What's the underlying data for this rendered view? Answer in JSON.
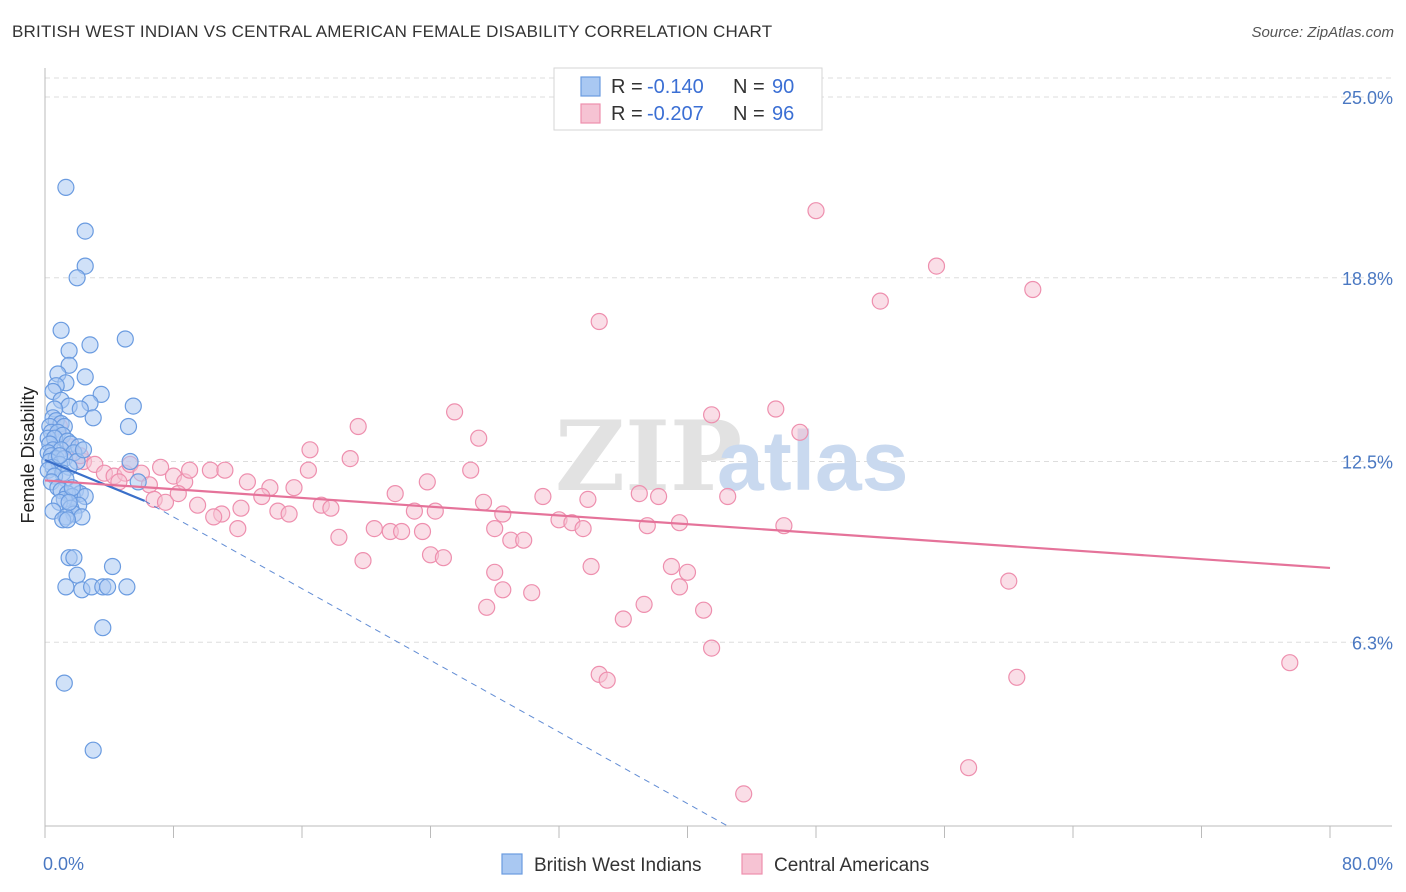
{
  "title": "BRITISH WEST INDIAN VS CENTRAL AMERICAN FEMALE DISABILITY CORRELATION CHART",
  "source": "Source: ZipAtlas.com",
  "watermark": {
    "zip": "ZIP",
    "atlas": "atlas"
  },
  "colors": {
    "blue_fill": "#a9c8f2",
    "blue_stroke": "#6a9be0",
    "blue_line": "#3a6fc9",
    "pink_fill": "#f6c3d3",
    "pink_stroke": "#ee8fae",
    "pink_line": "#e5739a",
    "tick_color": "#4a78c2",
    "grid": "#dddddd"
  },
  "legend": {
    "rows": [
      {
        "r_label": "R =",
        "r_value": "-0.140",
        "n_label": "N =",
        "n_value": "90"
      },
      {
        "r_label": "R =",
        "r_value": "-0.207",
        "n_label": "N =",
        "n_value": "96"
      }
    ]
  },
  "chart_data": {
    "type": "scatter",
    "ylabel": "Female Disability",
    "xlim": [
      0,
      80
    ],
    "ylim": [
      0,
      26
    ],
    "x_tick_labels": [
      "0.0%",
      "80.0%"
    ],
    "y_ticks": [
      6.3,
      12.5,
      18.8,
      25.0
    ],
    "y_tick_labels": [
      "6.3%",
      "12.5%",
      "18.8%",
      "25.0%"
    ],
    "grid": "horizontal dashed",
    "series": [
      {
        "name": "British West Indians",
        "points": [
          [
            1.3,
            21.9
          ],
          [
            2.5,
            20.4
          ],
          [
            2.5,
            19.2
          ],
          [
            2.0,
            18.8
          ],
          [
            1.0,
            17.0
          ],
          [
            5.0,
            16.7
          ],
          [
            2.8,
            16.5
          ],
          [
            1.5,
            16.3
          ],
          [
            1.5,
            15.8
          ],
          [
            0.8,
            15.5
          ],
          [
            2.5,
            15.4
          ],
          [
            1.3,
            15.2
          ],
          [
            0.7,
            15.1
          ],
          [
            3.5,
            14.8
          ],
          [
            0.5,
            14.9
          ],
          [
            1.0,
            14.6
          ],
          [
            2.8,
            14.5
          ],
          [
            1.5,
            14.4
          ],
          [
            5.5,
            14.4
          ],
          [
            0.6,
            14.3
          ],
          [
            2.2,
            14.3
          ],
          [
            3.0,
            14.0
          ],
          [
            0.5,
            14.0
          ],
          [
            0.7,
            13.9
          ],
          [
            1.0,
            13.8
          ],
          [
            0.3,
            13.7
          ],
          [
            1.2,
            13.7
          ],
          [
            5.2,
            13.7
          ],
          [
            0.4,
            13.5
          ],
          [
            0.8,
            13.5
          ],
          [
            1.1,
            13.4
          ],
          [
            0.2,
            13.3
          ],
          [
            0.6,
            13.3
          ],
          [
            1.4,
            13.2
          ],
          [
            0.3,
            13.1
          ],
          [
            1.6,
            13.1
          ],
          [
            2.1,
            13.0
          ],
          [
            0.5,
            12.9
          ],
          [
            1.0,
            12.9
          ],
          [
            0.2,
            12.8
          ],
          [
            1.8,
            12.8
          ],
          [
            0.4,
            12.7
          ],
          [
            0.7,
            12.6
          ],
          [
            1.2,
            12.6
          ],
          [
            2.0,
            12.5
          ],
          [
            0.3,
            12.5
          ],
          [
            0.9,
            12.4
          ],
          [
            5.3,
            12.5
          ],
          [
            0.5,
            12.3
          ],
          [
            1.5,
            12.3
          ],
          [
            0.2,
            12.2
          ],
          [
            1.1,
            12.1
          ],
          [
            0.6,
            12.0
          ],
          [
            1.3,
            11.9
          ],
          [
            0.4,
            11.8
          ],
          [
            5.8,
            11.8
          ],
          [
            0.8,
            11.6
          ],
          [
            1.0,
            11.5
          ],
          [
            1.9,
            11.5
          ],
          [
            2.2,
            11.4
          ],
          [
            1.4,
            11.4
          ],
          [
            1.7,
            11.3
          ],
          [
            2.5,
            11.3
          ],
          [
            1.2,
            11.2
          ],
          [
            0.9,
            11.1
          ],
          [
            2.1,
            11.0
          ],
          [
            1.6,
            10.9
          ],
          [
            0.5,
            10.8
          ],
          [
            1.8,
            10.7
          ],
          [
            1.3,
            10.6
          ],
          [
            2.3,
            10.6
          ],
          [
            1.1,
            10.5
          ],
          [
            1.4,
            10.5
          ],
          [
            1.5,
            9.2
          ],
          [
            1.8,
            9.2
          ],
          [
            4.2,
            8.9
          ],
          [
            2.0,
            8.6
          ],
          [
            1.3,
            8.2
          ],
          [
            2.3,
            8.1
          ],
          [
            2.9,
            8.2
          ],
          [
            3.6,
            8.2
          ],
          [
            3.9,
            8.2
          ],
          [
            5.1,
            8.2
          ],
          [
            3.6,
            6.8
          ],
          [
            1.2,
            4.9
          ],
          [
            3.0,
            2.6
          ],
          [
            1.7,
            11.6
          ],
          [
            0.9,
            12.7
          ],
          [
            2.4,
            12.9
          ],
          [
            1.5,
            11.1
          ]
        ]
      },
      {
        "name": "Central Americans",
        "points": [
          [
            48.0,
            21.1
          ],
          [
            55.5,
            19.2
          ],
          [
            52.0,
            18.0
          ],
          [
            61.5,
            18.4
          ],
          [
            34.5,
            17.3
          ],
          [
            25.5,
            14.2
          ],
          [
            41.5,
            14.1
          ],
          [
            45.5,
            14.3
          ],
          [
            19.5,
            13.7
          ],
          [
            27.0,
            13.3
          ],
          [
            47.0,
            13.5
          ],
          [
            16.5,
            12.9
          ],
          [
            19.0,
            12.6
          ],
          [
            26.5,
            12.2
          ],
          [
            0.9,
            13.7
          ],
          [
            1.6,
            13.0
          ],
          [
            2.4,
            12.5
          ],
          [
            3.1,
            12.4
          ],
          [
            3.7,
            12.1
          ],
          [
            4.3,
            12.0
          ],
          [
            5.0,
            12.1
          ],
          [
            5.3,
            12.4
          ],
          [
            6.0,
            12.1
          ],
          [
            6.5,
            11.7
          ],
          [
            7.2,
            12.3
          ],
          [
            8.0,
            12.0
          ],
          [
            8.7,
            11.8
          ],
          [
            10.3,
            12.2
          ],
          [
            11.2,
            12.2
          ],
          [
            12.6,
            11.8
          ],
          [
            14.0,
            11.6
          ],
          [
            15.5,
            11.6
          ],
          [
            16.4,
            12.2
          ],
          [
            6.8,
            11.2
          ],
          [
            7.5,
            11.1
          ],
          [
            9.5,
            11.0
          ],
          [
            11.0,
            10.7
          ],
          [
            12.2,
            10.9
          ],
          [
            13.5,
            11.3
          ],
          [
            14.5,
            10.8
          ],
          [
            15.2,
            10.7
          ],
          [
            17.2,
            11.0
          ],
          [
            17.8,
            10.9
          ],
          [
            20.5,
            10.2
          ],
          [
            21.5,
            10.1
          ],
          [
            22.2,
            10.1
          ],
          [
            23.0,
            10.8
          ],
          [
            23.5,
            10.1
          ],
          [
            24.3,
            10.8
          ],
          [
            21.8,
            11.4
          ],
          [
            23.8,
            11.8
          ],
          [
            27.3,
            11.1
          ],
          [
            28.0,
            10.2
          ],
          [
            28.5,
            10.7
          ],
          [
            31.0,
            11.3
          ],
          [
            32.0,
            10.5
          ],
          [
            32.8,
            10.4
          ],
          [
            33.5,
            10.2
          ],
          [
            33.8,
            11.2
          ],
          [
            37.0,
            11.4
          ],
          [
            37.5,
            10.3
          ],
          [
            38.2,
            11.3
          ],
          [
            39.5,
            10.4
          ],
          [
            42.5,
            11.3
          ],
          [
            46.0,
            10.3
          ],
          [
            10.5,
            10.6
          ],
          [
            12.0,
            10.2
          ],
          [
            18.3,
            9.9
          ],
          [
            29.0,
            9.8
          ],
          [
            29.8,
            9.8
          ],
          [
            24.0,
            9.3
          ],
          [
            24.8,
            9.2
          ],
          [
            19.8,
            9.1
          ],
          [
            34.0,
            8.9
          ],
          [
            28.0,
            8.7
          ],
          [
            39.0,
            8.9
          ],
          [
            40.0,
            8.7
          ],
          [
            28.5,
            8.1
          ],
          [
            30.3,
            8.0
          ],
          [
            39.5,
            8.2
          ],
          [
            27.5,
            7.5
          ],
          [
            37.3,
            7.6
          ],
          [
            41.0,
            7.4
          ],
          [
            36.0,
            7.1
          ],
          [
            60.0,
            8.4
          ],
          [
            41.5,
            6.1
          ],
          [
            34.5,
            5.2
          ],
          [
            35.0,
            5.0
          ],
          [
            60.5,
            5.1
          ],
          [
            77.5,
            5.6
          ],
          [
            57.5,
            2.0
          ],
          [
            43.5,
            1.1
          ],
          [
            2.2,
            12.7
          ],
          [
            4.6,
            11.8
          ],
          [
            9.0,
            12.2
          ],
          [
            8.3,
            11.4
          ]
        ]
      }
    ],
    "trendlines": [
      {
        "series": "British West Indians",
        "x": [
          0.0,
          6.2
        ],
        "y": [
          12.55,
          11.15
        ]
      },
      {
        "series": "British West Indians (extended)",
        "x": [
          6.2,
          42.5
        ],
        "y": [
          11.15,
          0.0
        ]
      },
      {
        "series": "Central Americans",
        "x": [
          0.0,
          80.0
        ],
        "y": [
          11.85,
          8.85
        ]
      }
    ]
  },
  "bottom_legend": [
    "British West Indians",
    "Central Americans"
  ]
}
